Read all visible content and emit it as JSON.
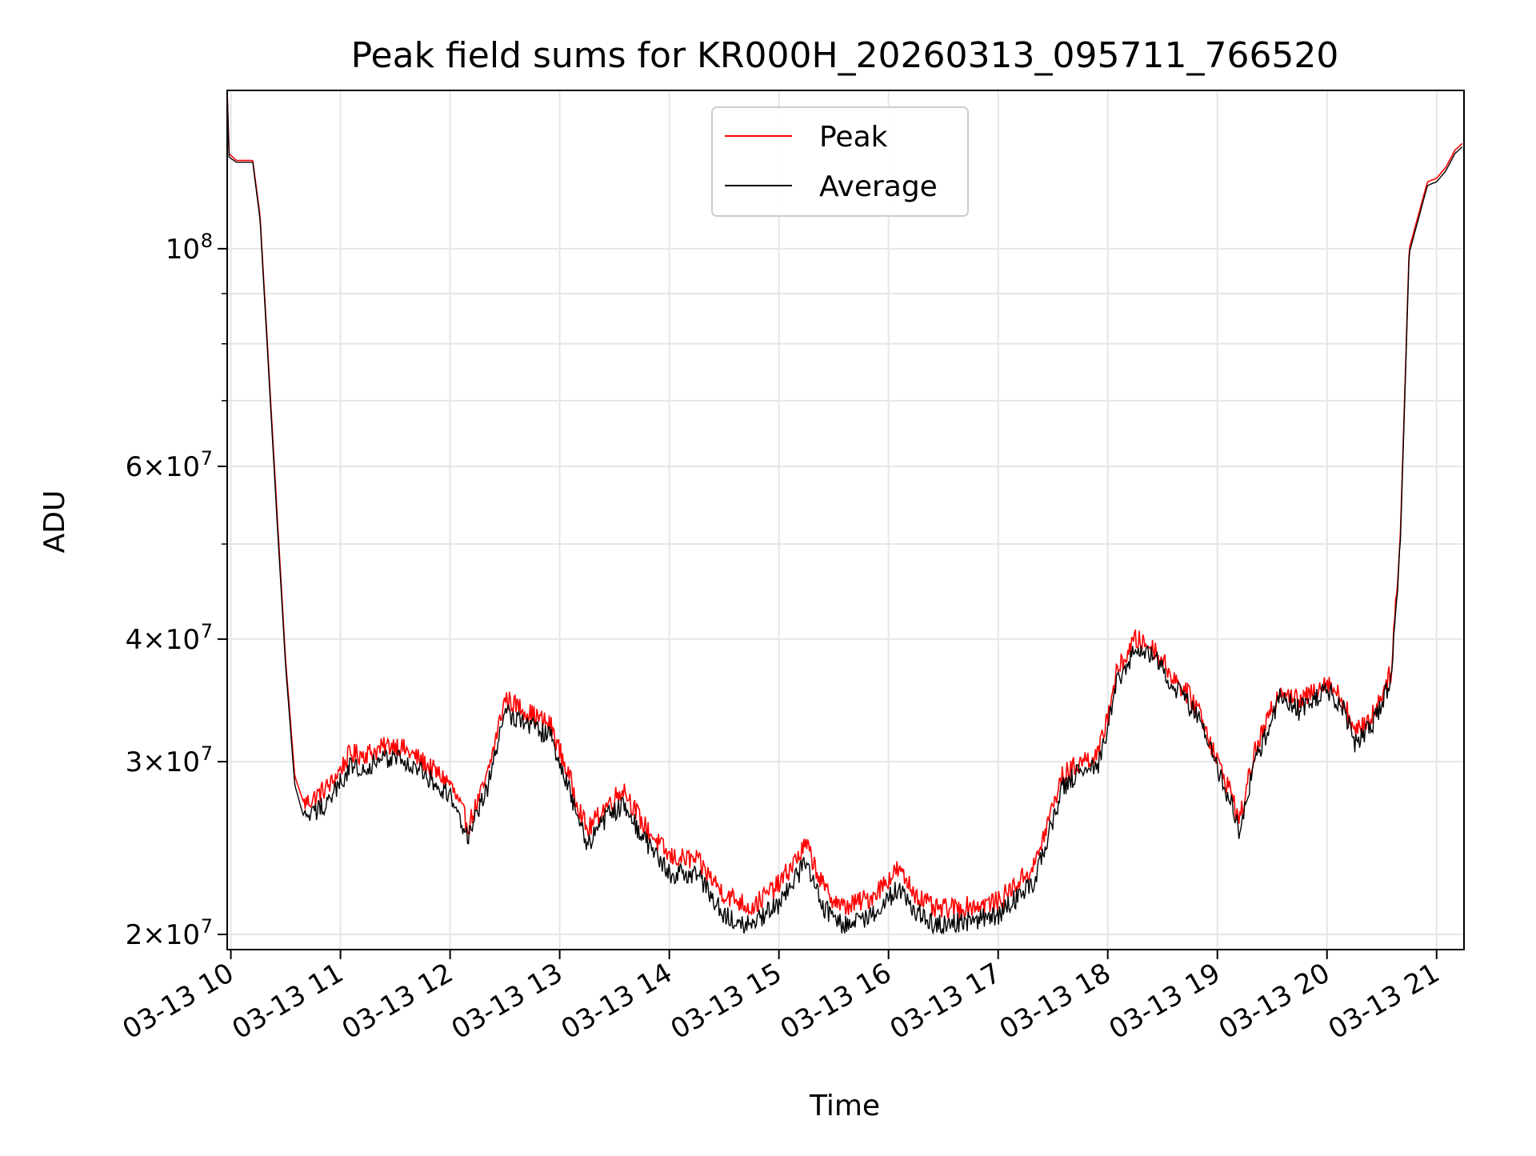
{
  "chart_data": {
    "type": "line",
    "title": "Peak field sums for KR000H_20260313_095711_766520",
    "xlabel": "Time",
    "ylabel": "ADU",
    "y_scale": "log",
    "ylim": [
      19300000,
      145000000
    ],
    "xlim": [
      "2026-03-13 09:58",
      "2026-03-13 21:15"
    ],
    "x_ticks": [
      {
        "time": "2026-03-13 10:00",
        "label": "03-13 10"
      },
      {
        "time": "2026-03-13 11:00",
        "label": "03-13 11"
      },
      {
        "time": "2026-03-13 12:00",
        "label": "03-13 12"
      },
      {
        "time": "2026-03-13 13:00",
        "label": "03-13 13"
      },
      {
        "time": "2026-03-13 14:00",
        "label": "03-13 14"
      },
      {
        "time": "2026-03-13 15:00",
        "label": "03-13 15"
      },
      {
        "time": "2026-03-13 16:00",
        "label": "03-13 16"
      },
      {
        "time": "2026-03-13 17:00",
        "label": "03-13 17"
      },
      {
        "time": "2026-03-13 18:00",
        "label": "03-13 18"
      },
      {
        "time": "2026-03-13 19:00",
        "label": "03-13 19"
      },
      {
        "time": "2026-03-13 20:00",
        "label": "03-13 20"
      },
      {
        "time": "2026-03-13 21:00",
        "label": "03-13 21"
      }
    ],
    "y_major_ticks": [
      {
        "value": 20000000,
        "mantissa": "2",
        "exponent": "7",
        "sep": "×",
        "base": "10"
      },
      {
        "value": 30000000,
        "mantissa": "3",
        "exponent": "7",
        "sep": "×",
        "base": "10"
      },
      {
        "value": 40000000,
        "mantissa": "4",
        "exponent": "7",
        "sep": "×",
        "base": "10"
      },
      {
        "value": 60000000,
        "mantissa": "6",
        "exponent": "7",
        "sep": "×",
        "base": "10"
      },
      {
        "value": 100000000,
        "mantissa": "",
        "exponent": "8",
        "sep": "",
        "base": "10"
      }
    ],
    "y_minor_grid": [
      50000000,
      70000000,
      80000000,
      90000000
    ],
    "grid": true,
    "legend": {
      "placement": "upper-center"
    },
    "series": [
      {
        "name": "Peak",
        "color": "#ff0000",
        "x": [
          "2026-03-13 09:58",
          "2026-03-13 09:59",
          "2026-03-13 10:03",
          "2026-03-13 10:12",
          "2026-03-13 10:16",
          "2026-03-13 10:20",
          "2026-03-13 10:25",
          "2026-03-13 10:30",
          "2026-03-13 10:35",
          "2026-03-13 10:40",
          "2026-03-13 10:45",
          "2026-03-13 10:55",
          "2026-03-13 11:05",
          "2026-03-13 11:15",
          "2026-03-13 11:30",
          "2026-03-13 11:45",
          "2026-03-13 12:00",
          "2026-03-13 12:10",
          "2026-03-13 12:20",
          "2026-03-13 12:30",
          "2026-03-13 12:45",
          "2026-03-13 12:55",
          "2026-03-13 13:05",
          "2026-03-13 13:15",
          "2026-03-13 13:25",
          "2026-03-13 13:35",
          "2026-03-13 13:45",
          "2026-03-13 14:00",
          "2026-03-13 14:15",
          "2026-03-13 14:30",
          "2026-03-13 14:45",
          "2026-03-13 15:00",
          "2026-03-13 15:15",
          "2026-03-13 15:25",
          "2026-03-13 15:35",
          "2026-03-13 15:50",
          "2026-03-13 16:05",
          "2026-03-13 16:15",
          "2026-03-13 16:25",
          "2026-03-13 16:40",
          "2026-03-13 17:00",
          "2026-03-13 17:20",
          "2026-03-13 17:35",
          "2026-03-13 17:45",
          "2026-03-13 17:55",
          "2026-03-13 18:05",
          "2026-03-13 18:15",
          "2026-03-13 18:25",
          "2026-03-13 18:35",
          "2026-03-13 18:50",
          "2026-03-13 19:00",
          "2026-03-13 19:08",
          "2026-03-13 19:12",
          "2026-03-13 19:20",
          "2026-03-13 19:35",
          "2026-03-13 19:45",
          "2026-03-13 20:00",
          "2026-03-13 20:10",
          "2026-03-13 20:15",
          "2026-03-13 20:25",
          "2026-03-13 20:35",
          "2026-03-13 20:40",
          "2026-03-13 20:45",
          "2026-03-13 20:55",
          "2026-03-13 21:00",
          "2026-03-13 21:05",
          "2026-03-13 21:10",
          "2026-03-13 21:14"
        ],
        "y": [
          145000000,
          125000000,
          123000000,
          123000000,
          108000000,
          80000000,
          55000000,
          38000000,
          29000000,
          27200000,
          27500000,
          28500000,
          30500000,
          30600000,
          31300000,
          30000000,
          28500000,
          25800000,
          28800000,
          34800000,
          33500000,
          32700000,
          29000000,
          25500000,
          27000000,
          28200000,
          26000000,
          24000000,
          23800000,
          22000000,
          21300000,
          22500000,
          24700000,
          22200000,
          21300000,
          21800000,
          23300000,
          22000000,
          21200000,
          21300000,
          21600000,
          23500000,
          29000000,
          30000000,
          30500000,
          37000000,
          40000000,
          39200000,
          36800000,
          34000000,
          30000000,
          27800000,
          26000000,
          30500000,
          35800000,
          34500000,
          36300000,
          34400000,
          32000000,
          33500000,
          37000000,
          50000000,
          100000000,
          117000000,
          118000000,
          121000000,
          126000000,
          128000000
        ]
      },
      {
        "name": "Average",
        "color": "#000000",
        "x": [
          "2026-03-13 09:58",
          "2026-03-13 09:59",
          "2026-03-13 10:03",
          "2026-03-13 10:12",
          "2026-03-13 10:16",
          "2026-03-13 10:20",
          "2026-03-13 10:25",
          "2026-03-13 10:30",
          "2026-03-13 10:35",
          "2026-03-13 10:40",
          "2026-03-13 10:45",
          "2026-03-13 10:55",
          "2026-03-13 11:05",
          "2026-03-13 11:15",
          "2026-03-13 11:30",
          "2026-03-13 11:45",
          "2026-03-13 12:00",
          "2026-03-13 12:10",
          "2026-03-13 12:20",
          "2026-03-13 12:30",
          "2026-03-13 12:45",
          "2026-03-13 12:55",
          "2026-03-13 13:05",
          "2026-03-13 13:15",
          "2026-03-13 13:25",
          "2026-03-13 13:35",
          "2026-03-13 13:45",
          "2026-03-13 14:00",
          "2026-03-13 14:15",
          "2026-03-13 14:30",
          "2026-03-13 14:45",
          "2026-03-13 15:00",
          "2026-03-13 15:15",
          "2026-03-13 15:25",
          "2026-03-13 15:35",
          "2026-03-13 15:50",
          "2026-03-13 16:05",
          "2026-03-13 16:15",
          "2026-03-13 16:25",
          "2026-03-13 16:40",
          "2026-03-13 17:00",
          "2026-03-13 17:20",
          "2026-03-13 17:35",
          "2026-03-13 17:45",
          "2026-03-13 17:55",
          "2026-03-13 18:05",
          "2026-03-13 18:15",
          "2026-03-13 18:25",
          "2026-03-13 18:35",
          "2026-03-13 18:50",
          "2026-03-13 19:00",
          "2026-03-13 19:08",
          "2026-03-13 19:12",
          "2026-03-13 19:20",
          "2026-03-13 19:35",
          "2026-03-13 19:45",
          "2026-03-13 20:00",
          "2026-03-13 20:10",
          "2026-03-13 20:15",
          "2026-03-13 20:25",
          "2026-03-13 20:35",
          "2026-03-13 20:40",
          "2026-03-13 20:45",
          "2026-03-13 20:55",
          "2026-03-13 21:00",
          "2026-03-13 21:05",
          "2026-03-13 21:10",
          "2026-03-13 21:14"
        ],
        "y": [
          145000000,
          124000000,
          122500000,
          122500000,
          107000000,
          79000000,
          54000000,
          37500000,
          28400000,
          26300000,
          26500000,
          27600000,
          29600000,
          29700000,
          30400000,
          29200000,
          27700000,
          25100000,
          28000000,
          33800000,
          32600000,
          31800000,
          28200000,
          24700000,
          26200000,
          27200000,
          25200000,
          23100000,
          23000000,
          21000000,
          20400000,
          21500000,
          23700000,
          21300000,
          20500000,
          20800000,
          22300000,
          21100000,
          20500000,
          20600000,
          20900000,
          22700000,
          28200000,
          29300000,
          29700000,
          36100000,
          39100000,
          38500000,
          36000000,
          33300000,
          29400000,
          27100000,
          25400000,
          29800000,
          35100000,
          33800000,
          35600000,
          33700000,
          31400000,
          32800000,
          36300000,
          49000000,
          99000000,
          116000000,
          117000000,
          120000000,
          125000000,
          127000000
        ]
      }
    ]
  }
}
